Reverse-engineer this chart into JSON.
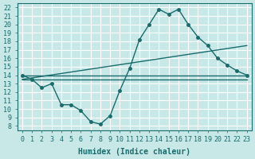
{
  "xlabel": "Humidex (Indice chaleur)",
  "bg_color": "#c8e8e8",
  "grid_color": "#ffffff",
  "line_color": "#1a6b6b",
  "xlim": [
    -0.5,
    23.5
  ],
  "ylim": [
    7.5,
    22.5
  ],
  "xticks": [
    0,
    1,
    2,
    3,
    4,
    5,
    6,
    7,
    8,
    9,
    10,
    11,
    12,
    13,
    14,
    15,
    16,
    17,
    18,
    19,
    20,
    21,
    22,
    23
  ],
  "yticks": [
    8,
    9,
    10,
    11,
    12,
    13,
    14,
    15,
    16,
    17,
    18,
    19,
    20,
    21,
    22
  ],
  "line1_x": [
    0,
    1,
    2,
    3,
    4,
    5,
    6,
    7,
    8,
    9,
    10,
    11,
    12,
    13,
    14,
    15,
    16,
    17,
    18,
    19,
    20,
    21,
    22,
    23
  ],
  "line1_y": [
    14.0,
    13.5,
    12.5,
    13.0,
    10.5,
    10.5,
    9.8,
    8.5,
    8.2,
    9.2,
    12.2,
    14.8,
    18.2,
    20.0,
    21.8,
    21.2,
    21.8,
    20.0,
    18.5,
    17.5,
    16.0,
    15.2,
    14.5,
    14.0
  ],
  "line2_x": [
    0,
    23
  ],
  "line2_y": [
    14.0,
    14.0
  ],
  "line3_x": [
    0,
    23
  ],
  "line3_y": [
    13.5,
    17.5
  ],
  "line4_x": [
    0,
    23
  ],
  "line4_y": [
    13.5,
    13.5
  ]
}
